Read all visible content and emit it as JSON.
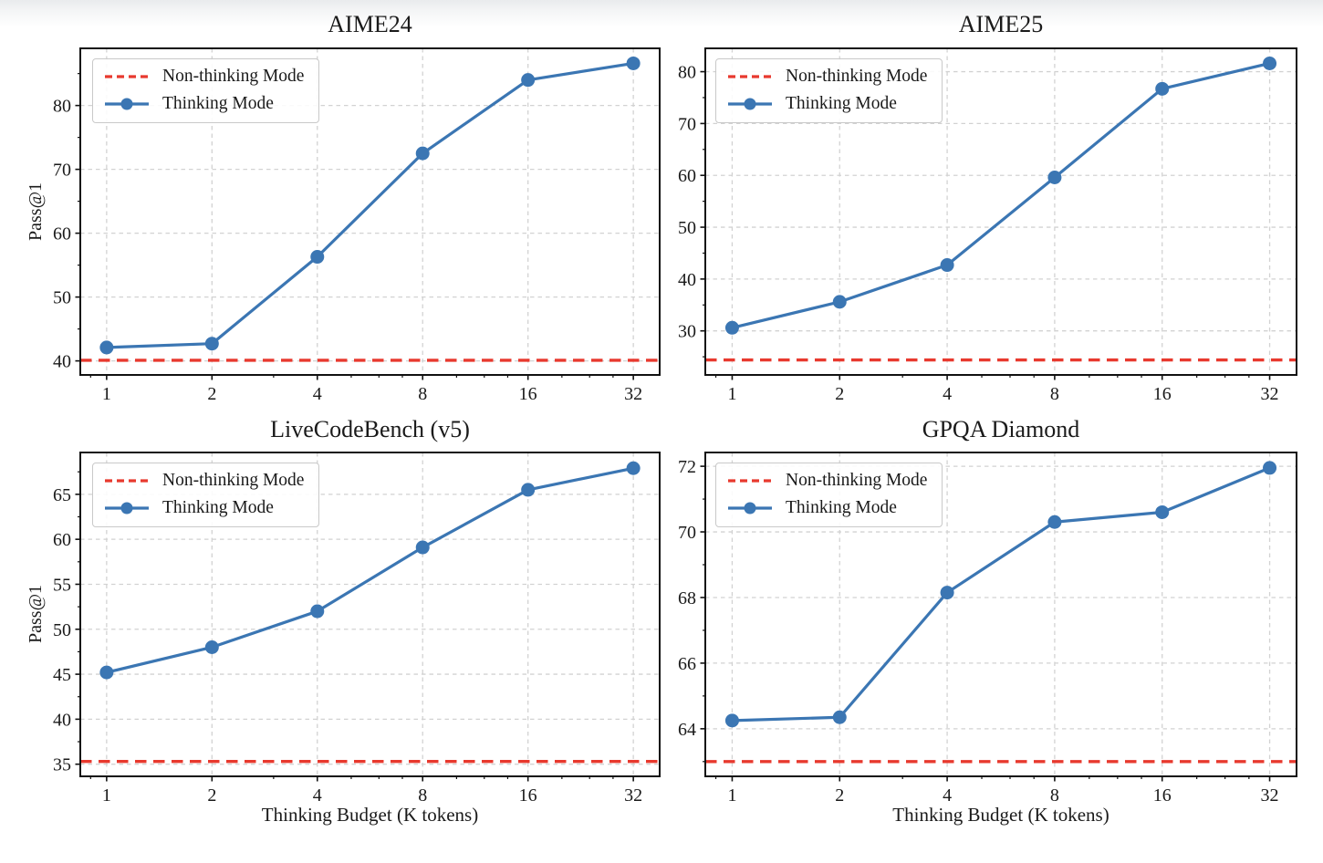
{
  "figure": {
    "background": "#ffffff",
    "shared_x_label": "Thinking Budget (K tokens)",
    "shared_y_label": "Pass@1"
  },
  "colors": {
    "thinking_line": "#3b76b3",
    "baseline_line": "#e8392e",
    "grid": "#d2d2d2",
    "spine": "#111111",
    "text": "#1a1a1a",
    "legend_border": "#c9c9c9"
  },
  "chart_data": [
    {
      "type": "line",
      "title": "AIME24",
      "xlabel": "",
      "ylabel": "Pass@1",
      "xscale": "log2",
      "x": [
        1,
        2,
        4,
        8,
        16,
        32
      ],
      "xtick_labels": [
        "1",
        "2",
        "4",
        "8",
        "16",
        "32"
      ],
      "series": [
        {
          "name": "Thinking Mode",
          "values": [
            42.1,
            42.7,
            56.3,
            72.5,
            84.0,
            86.6
          ]
        }
      ],
      "baseline": {
        "name": "Non-thinking Mode",
        "value": 40.1
      },
      "yticks": [
        40,
        50,
        60,
        70,
        80
      ],
      "ytick_minor_step": 5,
      "ylim": [
        37.8,
        88.95
      ],
      "grid": true,
      "legend_position": "upper left"
    },
    {
      "type": "line",
      "title": "AIME25",
      "xlabel": "",
      "ylabel": "",
      "xscale": "log2",
      "x": [
        1,
        2,
        4,
        8,
        16,
        32
      ],
      "xtick_labels": [
        "1",
        "2",
        "4",
        "8",
        "16",
        "32"
      ],
      "series": [
        {
          "name": "Thinking Mode",
          "values": [
            30.6,
            35.6,
            42.7,
            59.6,
            76.7,
            81.6
          ]
        }
      ],
      "baseline": {
        "name": "Non-thinking Mode",
        "value": 24.4
      },
      "yticks": [
        30,
        40,
        50,
        60,
        70,
        80
      ],
      "ytick_minor_step": 5,
      "ylim": [
        21.5,
        84.5
      ],
      "grid": true,
      "legend_position": "upper left"
    },
    {
      "type": "line",
      "title": "LiveCodeBench (v5)",
      "xlabel": "Thinking Budget (K tokens)",
      "ylabel": "Pass@1",
      "xscale": "log2",
      "x": [
        1,
        2,
        4,
        8,
        16,
        32
      ],
      "xtick_labels": [
        "1",
        "2",
        "4",
        "8",
        "16",
        "32"
      ],
      "series": [
        {
          "name": "Thinking Mode",
          "values": [
            45.2,
            48.0,
            52.0,
            59.1,
            65.5,
            67.9
          ]
        }
      ],
      "baseline": {
        "name": "Non-thinking Mode",
        "value": 35.3
      },
      "yticks": [
        35,
        40,
        45,
        50,
        55,
        60,
        65
      ],
      "ytick_minor_step": 2.5,
      "ylim": [
        33.65,
        69.65
      ],
      "grid": true,
      "legend_position": "upper left"
    },
    {
      "type": "line",
      "title": "GPQA Diamond",
      "xlabel": "Thinking Budget (K tokens)",
      "ylabel": "",
      "xscale": "log2",
      "x": [
        1,
        2,
        4,
        8,
        16,
        32
      ],
      "xtick_labels": [
        "1",
        "2",
        "4",
        "8",
        "16",
        "32"
      ],
      "series": [
        {
          "name": "Thinking Mode",
          "values": [
            64.25,
            64.35,
            68.15,
            70.3,
            70.6,
            71.95
          ]
        }
      ],
      "baseline": {
        "name": "Non-thinking Mode",
        "value": 63.0
      },
      "yticks": [
        64,
        66,
        68,
        70,
        72
      ],
      "ytick_minor_step": 1,
      "ylim": [
        62.55,
        72.42
      ],
      "grid": true,
      "legend_position": "upper left"
    }
  ]
}
